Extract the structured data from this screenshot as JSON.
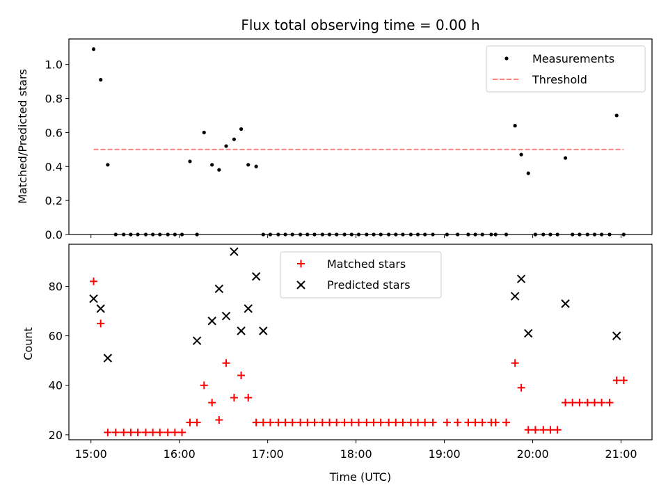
{
  "chart_data": [
    {
      "type": "scatter",
      "title": "Flux total observing time = 0.00 h",
      "xlabel": "",
      "ylabel": "Matched/Predicted stars",
      "xlim": [
        14.75,
        21.35
      ],
      "ylim": [
        0.0,
        1.15
      ],
      "yticks": [
        0.0,
        0.2,
        0.4,
        0.6,
        0.8,
        1.0
      ],
      "ytick_labels": [
        "0.0",
        "0.2",
        "0.4",
        "0.6",
        "0.8",
        "1.0"
      ],
      "legend": {
        "location": "upper right",
        "entries": [
          "Measurements",
          "Threshold"
        ]
      },
      "series": [
        {
          "name": "Measurements",
          "marker": "dot",
          "color": "#000000",
          "x": [
            15.03,
            15.11,
            15.19,
            15.28,
            15.37,
            15.45,
            15.53,
            15.62,
            15.7,
            15.78,
            15.87,
            15.95,
            16.03,
            16.12,
            16.2,
            16.28,
            16.37,
            16.45,
            16.53,
            16.62,
            16.7,
            16.78,
            16.87,
            16.95,
            17.03,
            17.12,
            17.2,
            17.28,
            17.37,
            17.45,
            17.53,
            17.62,
            17.7,
            17.78,
            17.87,
            17.95,
            18.03,
            18.12,
            18.2,
            18.28,
            18.37,
            18.45,
            18.53,
            18.62,
            18.7,
            18.78,
            18.87,
            19.03,
            19.15,
            19.27,
            19.35,
            19.43,
            19.53,
            19.58,
            19.7,
            19.8,
            19.87,
            19.95,
            20.03,
            20.12,
            20.2,
            20.28,
            20.37,
            20.45,
            20.53,
            20.62,
            20.7,
            20.78,
            20.87,
            20.95,
            21.03
          ],
          "y": [
            1.09,
            0.91,
            0.41,
            0,
            0,
            0,
            0,
            0,
            0,
            0,
            0,
            0,
            0,
            0.43,
            0,
            0.6,
            0.41,
            0.38,
            0.52,
            0.56,
            0.62,
            0.41,
            0.4,
            0,
            0,
            0,
            0,
            0,
            0,
            0,
            0,
            0,
            0,
            0,
            0,
            0,
            0,
            0,
            0,
            0,
            0,
            0,
            0,
            0,
            0,
            0,
            0,
            0,
            0,
            0,
            0,
            0,
            0,
            0,
            0,
            0.64,
            0.47,
            0.36,
            0,
            0,
            0,
            0,
            0.45,
            0,
            0,
            0,
            0,
            0,
            0,
            0.7,
            0
          ]
        },
        {
          "name": "Threshold",
          "style": "dashed",
          "color": "#ff7f7f",
          "x": [
            15.03,
            21.03
          ],
          "y": [
            0.5,
            0.5
          ]
        }
      ]
    },
    {
      "type": "scatter",
      "title": "",
      "xlabel": "Time (UTC)",
      "ylabel": "Count",
      "xlim": [
        14.75,
        21.35
      ],
      "ylim": [
        18,
        97
      ],
      "yticks": [
        20,
        40,
        60,
        80
      ],
      "ytick_labels": [
        "20",
        "40",
        "60",
        "80"
      ],
      "xticks": [
        15,
        16,
        17,
        18,
        19,
        20,
        21
      ],
      "xtick_labels": [
        "15:00",
        "16:00",
        "17:00",
        "18:00",
        "19:00",
        "20:00",
        "21:00"
      ],
      "legend": {
        "location": "upper center",
        "entries": [
          "Matched stars",
          "Predicted stars"
        ]
      },
      "series": [
        {
          "name": "Matched stars",
          "marker": "plus",
          "color": "#ff0000",
          "x": [
            15.03,
            15.11,
            15.19,
            15.28,
            15.37,
            15.45,
            15.53,
            15.62,
            15.7,
            15.78,
            15.87,
            15.95,
            16.03,
            16.12,
            16.2,
            16.28,
            16.37,
            16.45,
            16.53,
            16.62,
            16.7,
            16.78,
            16.87,
            16.95,
            17.03,
            17.12,
            17.2,
            17.28,
            17.37,
            17.45,
            17.53,
            17.62,
            17.7,
            17.78,
            17.87,
            17.95,
            18.03,
            18.12,
            18.2,
            18.28,
            18.37,
            18.45,
            18.53,
            18.62,
            18.7,
            18.78,
            18.87,
            19.03,
            19.15,
            19.27,
            19.35,
            19.43,
            19.53,
            19.58,
            19.7,
            19.8,
            19.87,
            19.95,
            20.03,
            20.12,
            20.2,
            20.28,
            20.37,
            20.45,
            20.53,
            20.62,
            20.7,
            20.78,
            20.87,
            20.95,
            21.03
          ],
          "y": [
            82,
            65,
            21,
            21,
            21,
            21,
            21,
            21,
            21,
            21,
            21,
            21,
            21,
            25,
            25,
            40,
            33,
            26,
            49,
            35,
            44,
            35,
            25,
            25,
            25,
            25,
            25,
            25,
            25,
            25,
            25,
            25,
            25,
            25,
            25,
            25,
            25,
            25,
            25,
            25,
            25,
            25,
            25,
            25,
            25,
            25,
            25,
            25,
            25,
            25,
            25,
            25,
            25,
            25,
            25,
            49,
            39,
            22,
            22,
            22,
            22,
            22,
            33,
            33,
            33,
            33,
            33,
            33,
            33,
            42,
            42
          ]
        },
        {
          "name": "Predicted stars",
          "marker": "x",
          "color": "#000000",
          "x": [
            15.03,
            15.11,
            15.19,
            16.2,
            16.37,
            16.45,
            16.53,
            16.62,
            16.7,
            16.78,
            16.87,
            16.95,
            19.8,
            19.87,
            19.95,
            20.37,
            20.95
          ],
          "y": [
            75,
            71,
            51,
            58,
            66,
            79,
            68,
            94,
            62,
            71,
            84,
            62,
            76,
            83,
            61,
            73,
            60
          ]
        }
      ]
    }
  ]
}
